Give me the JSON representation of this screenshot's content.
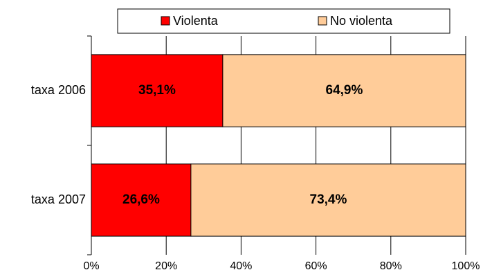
{
  "chart_data": {
    "type": "stacked-bar-horizontal",
    "categories": [
      "taxa 2006",
      "taxa 2007"
    ],
    "series": [
      {
        "name": "Violenta",
        "color": "#ff0000",
        "values": [
          35.1,
          26.6
        ],
        "value_labels": [
          "35,1%",
          "26,6%"
        ]
      },
      {
        "name": "No violenta",
        "color": "#ffcc99",
        "values": [
          64.9,
          73.4
        ],
        "value_labels": [
          "64,9%",
          "73,4%"
        ]
      }
    ],
    "xlim": [
      0,
      100
    ],
    "xticks": [
      {
        "value": 0,
        "label": "0%"
      },
      {
        "value": 20,
        "label": "20%"
      },
      {
        "value": 40,
        "label": "40%"
      },
      {
        "value": 60,
        "label": "60%"
      },
      {
        "value": 80,
        "label": "80%"
      },
      {
        "value": 100,
        "label": "100%"
      }
    ],
    "grid": true,
    "legend": "top"
  }
}
